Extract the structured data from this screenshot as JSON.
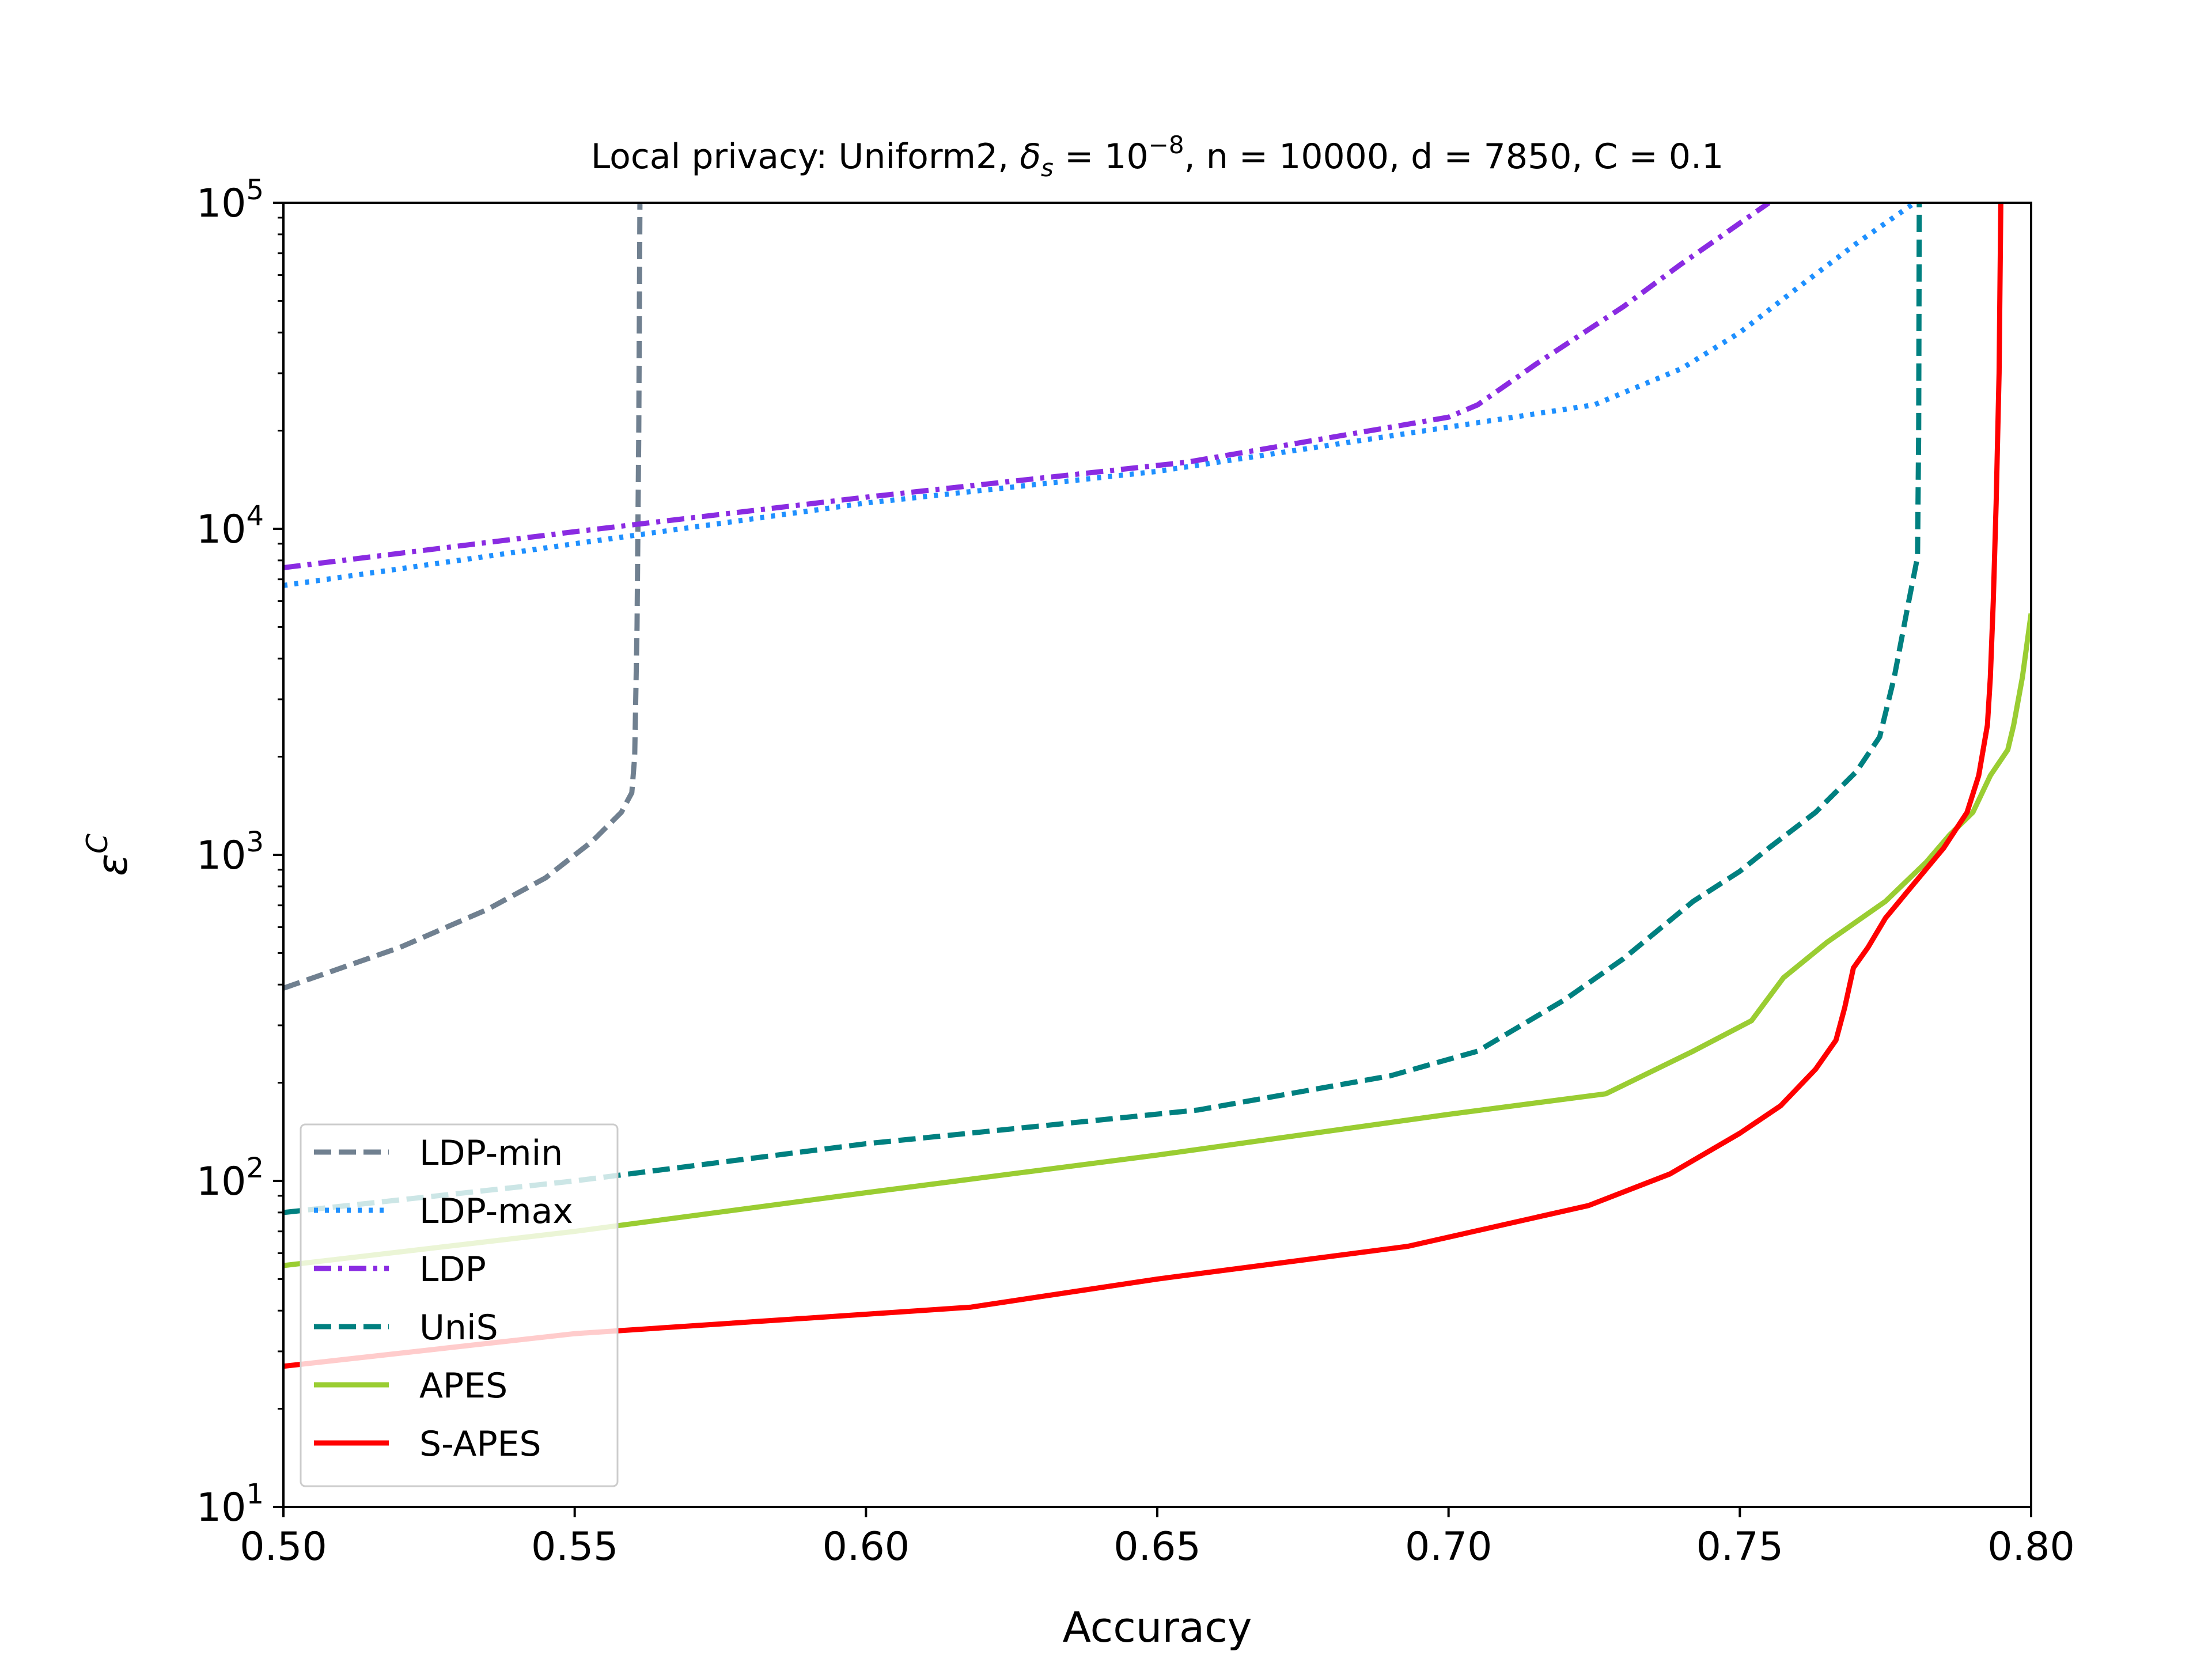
{
  "chart_data": {
    "type": "line",
    "title": "Local privacy: Uniform2, δ_s = 10^−8, n = 10000, d = 7850, C = 0.1",
    "title_parts": {
      "prefix": "Local privacy: Uniform2, ",
      "delta_symbol": "δ",
      "delta_sub": "s",
      "delta_eq": " = 10",
      "delta_exp": "−8",
      "rest": ", n = 10000, d = 7850, C = 0.1"
    },
    "xlabel": "Accuracy",
    "ylabel": {
      "symbol": "ε",
      "superscript": "C"
    },
    "xlim": [
      0.5,
      0.8
    ],
    "ylim": [
      10,
      100000
    ],
    "yscale": "log",
    "grid": false,
    "legend_position": "lower-left",
    "xticks": [
      {
        "value": 0.5,
        "label": "0.50"
      },
      {
        "value": 0.55,
        "label": "0.55"
      },
      {
        "value": 0.6,
        "label": "0.60"
      },
      {
        "value": 0.65,
        "label": "0.65"
      },
      {
        "value": 0.7,
        "label": "0.70"
      },
      {
        "value": 0.75,
        "label": "0.75"
      },
      {
        "value": 0.8,
        "label": "0.80"
      }
    ],
    "yticks": [
      {
        "value": 10,
        "base": "10",
        "exp": "1"
      },
      {
        "value": 100,
        "base": "10",
        "exp": "2"
      },
      {
        "value": 1000,
        "base": "10",
        "exp": "3"
      },
      {
        "value": 10000,
        "base": "10",
        "exp": "4"
      },
      {
        "value": 100000,
        "base": "10",
        "exp": "5"
      }
    ],
    "series": [
      {
        "name": "LDP-min",
        "color": "#708090",
        "dash": "dashed",
        "points": [
          [
            0.5,
            390
          ],
          [
            0.52,
            520
          ],
          [
            0.535,
            680
          ],
          [
            0.545,
            850
          ],
          [
            0.553,
            1100
          ],
          [
            0.558,
            1350
          ],
          [
            0.5598,
            1550
          ],
          [
            0.5603,
            2000
          ],
          [
            0.5607,
            5000
          ],
          [
            0.561,
            20000
          ],
          [
            0.5612,
            100000
          ]
        ]
      },
      {
        "name": "LDP-max",
        "color": "#1e90ff",
        "dash": "dotted",
        "points": [
          [
            0.5,
            6700
          ],
          [
            0.55,
            9000
          ],
          [
            0.6,
            12000
          ],
          [
            0.65,
            15000
          ],
          [
            0.7,
            20500
          ],
          [
            0.725,
            24000
          ],
          [
            0.74,
            31000
          ],
          [
            0.75,
            40000
          ],
          [
            0.76,
            55000
          ],
          [
            0.77,
            75000
          ],
          [
            0.78,
            100000
          ]
        ]
      },
      {
        "name": "LDP",
        "color": "#8a2be2",
        "dash": "dashdot",
        "points": [
          [
            0.5,
            7600
          ],
          [
            0.55,
            9800
          ],
          [
            0.6,
            12500
          ],
          [
            0.655,
            16000
          ],
          [
            0.7,
            22000
          ],
          [
            0.705,
            24000
          ],
          [
            0.715,
            32000
          ],
          [
            0.73,
            48000
          ],
          [
            0.74,
            65000
          ],
          [
            0.745,
            75000
          ],
          [
            0.755,
            100000
          ]
        ]
      },
      {
        "name": "UniS",
        "color": "#008080",
        "dash": "dashed",
        "points": [
          [
            0.5,
            80
          ],
          [
            0.55,
            100
          ],
          [
            0.6,
            130
          ],
          [
            0.657,
            165
          ],
          [
            0.69,
            210
          ],
          [
            0.705,
            250
          ],
          [
            0.72,
            360
          ],
          [
            0.73,
            480
          ],
          [
            0.742,
            720
          ],
          [
            0.75,
            890
          ],
          [
            0.755,
            1050
          ],
          [
            0.763,
            1350
          ],
          [
            0.77,
            1800
          ],
          [
            0.774,
            2300
          ],
          [
            0.7765,
            3500
          ],
          [
            0.779,
            6000
          ],
          [
            0.7805,
            8200
          ],
          [
            0.7807,
            20000
          ],
          [
            0.7808,
            100000
          ]
        ]
      },
      {
        "name": "APES",
        "color": "#9acd32",
        "dash": "solid",
        "points": [
          [
            0.5,
            55
          ],
          [
            0.55,
            70
          ],
          [
            0.6,
            92
          ],
          [
            0.65,
            120
          ],
          [
            0.7,
            160
          ],
          [
            0.727,
            185
          ],
          [
            0.742,
            250
          ],
          [
            0.752,
            310
          ],
          [
            0.7575,
            420
          ],
          [
            0.765,
            540
          ],
          [
            0.775,
            720
          ],
          [
            0.782,
            950
          ],
          [
            0.786,
            1150
          ],
          [
            0.79,
            1350
          ],
          [
            0.793,
            1750
          ],
          [
            0.796,
            2100
          ],
          [
            0.797,
            2500
          ],
          [
            0.7985,
            3500
          ],
          [
            0.8,
            5500
          ]
        ]
      },
      {
        "name": "S-APES",
        "color": "#ff0000",
        "dash": "solid",
        "points": [
          [
            0.5,
            27
          ],
          [
            0.55,
            34
          ],
          [
            0.6,
            39
          ],
          [
            0.618,
            41
          ],
          [
            0.65,
            50
          ],
          [
            0.693,
            63
          ],
          [
            0.724,
            84
          ],
          [
            0.738,
            105
          ],
          [
            0.75,
            140
          ],
          [
            0.757,
            170
          ],
          [
            0.763,
            220
          ],
          [
            0.7665,
            270
          ],
          [
            0.768,
            340
          ],
          [
            0.7695,
            450
          ],
          [
            0.772,
            520
          ],
          [
            0.775,
            640
          ],
          [
            0.78,
            820
          ],
          [
            0.785,
            1050
          ],
          [
            0.789,
            1350
          ],
          [
            0.791,
            1750
          ],
          [
            0.7925,
            2500
          ],
          [
            0.793,
            3500
          ],
          [
            0.7935,
            6000
          ],
          [
            0.794,
            12000
          ],
          [
            0.7945,
            30000
          ],
          [
            0.7948,
            100000
          ]
        ]
      }
    ]
  }
}
